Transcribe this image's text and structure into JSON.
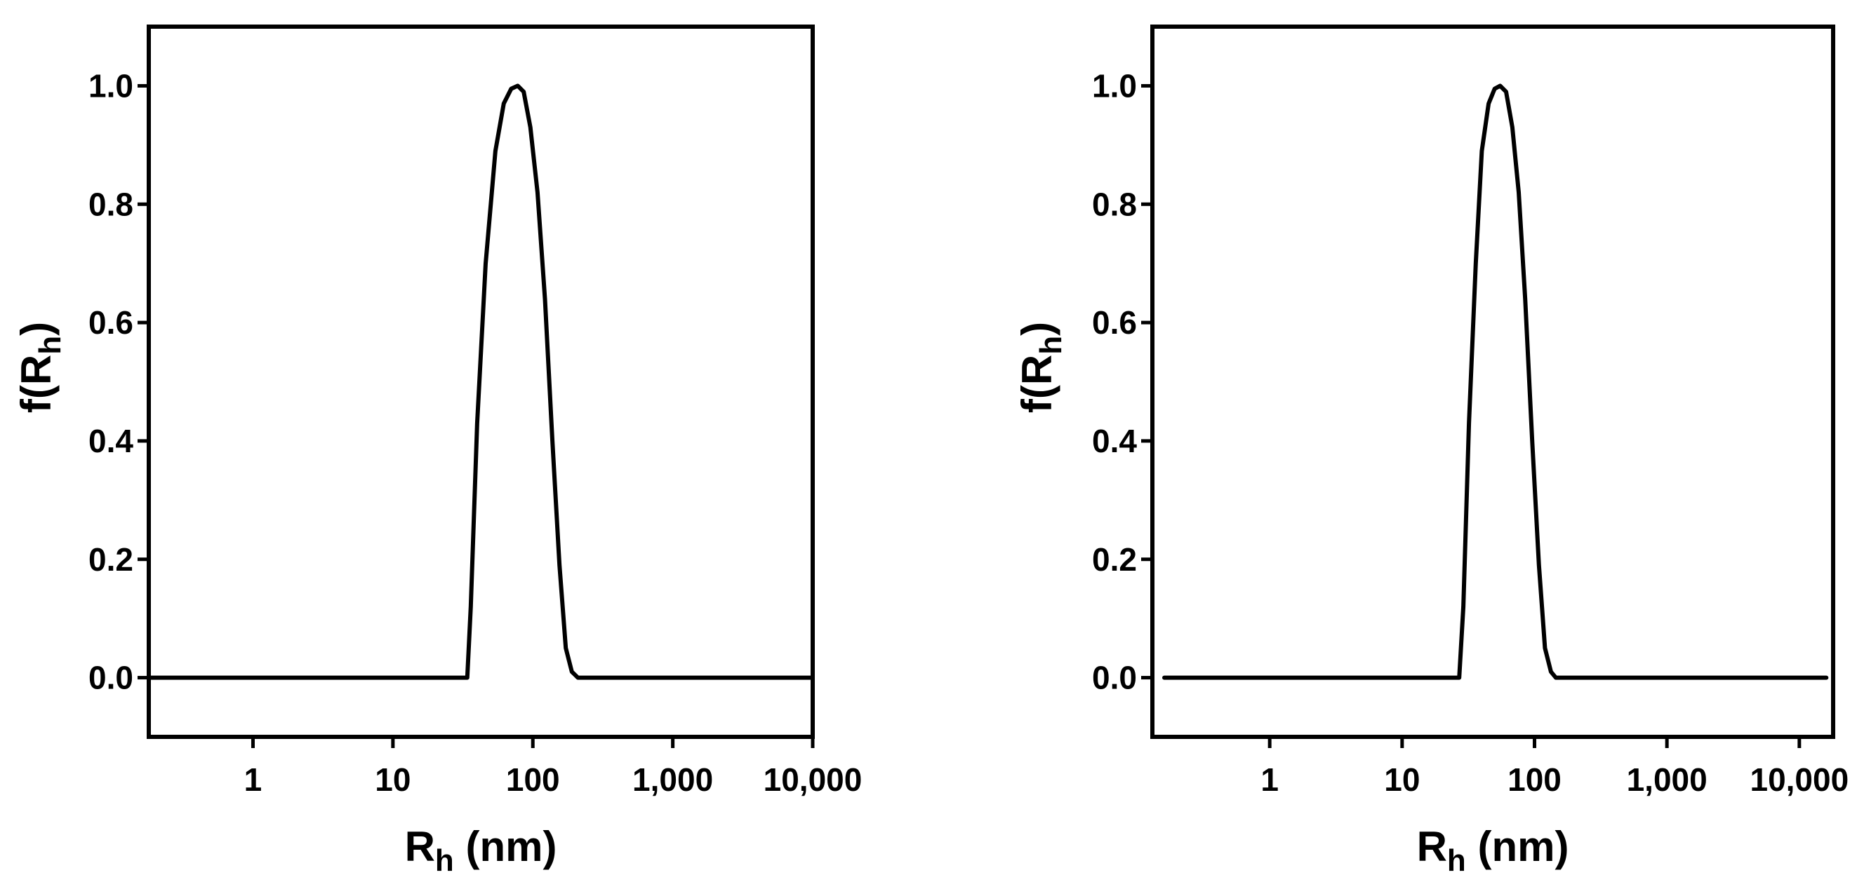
{
  "chart_data": [
    {
      "type": "line",
      "title": "",
      "xlabel": "R",
      "xlabel_subscript": "h",
      "xlabel_suffix": " (nm)",
      "ylabel": "f(R",
      "ylabel_subscript": "h",
      "ylabel_suffix": ")",
      "x_scale": "log",
      "xlim": [
        0.18,
        10000
      ],
      "ylim": [
        -0.1,
        1.1
      ],
      "x_ticks": [
        1,
        10,
        100,
        1000,
        10000
      ],
      "x_tick_labels": [
        "1",
        "10",
        "100",
        "1,000",
        "10,000"
      ],
      "y_ticks": [
        0.0,
        0.2,
        0.4,
        0.6,
        0.8,
        1.0
      ],
      "y_tick_labels": [
        "0.0",
        "0.2",
        "0.4",
        "0.6",
        "0.8",
        "1.0"
      ],
      "grid": false,
      "legend": "none",
      "series": [
        {
          "color": "#000000",
          "x": [
            0.18,
            34,
            36,
            40,
            46,
            54,
            62,
            70,
            78,
            86,
            96,
            108,
            122,
            138,
            155,
            172,
            190,
            210,
            10000
          ],
          "y": [
            0.0,
            0.0,
            0.12,
            0.43,
            0.7,
            0.89,
            0.97,
            0.995,
            1.0,
            0.99,
            0.93,
            0.82,
            0.64,
            0.4,
            0.19,
            0.05,
            0.01,
            0.0,
            0.0
          ]
        }
      ]
    },
    {
      "type": "line",
      "title": "",
      "xlabel": "R",
      "xlabel_subscript": "h",
      "xlabel_suffix": " (nm)",
      "ylabel": "f(R",
      "ylabel_subscript": "h",
      "ylabel_suffix": ")",
      "x_scale": "log",
      "xlim": [
        0.13,
        18000
      ],
      "ylim": [
        -0.1,
        1.1
      ],
      "x_ticks": [
        1,
        10,
        100,
        1000,
        10000
      ],
      "x_tick_labels": [
        "1",
        "10",
        "100",
        "1,000",
        "10,000"
      ],
      "y_ticks": [
        0.0,
        0.2,
        0.4,
        0.6,
        0.8,
        1.0
      ],
      "y_tick_labels": [
        "0.0",
        "0.2",
        "0.4",
        "0.6",
        "0.8",
        "1.0"
      ],
      "grid": false,
      "legend": "none",
      "series": [
        {
          "color": "#000000",
          "x": [
            0.16,
            27,
            29,
            32,
            36,
            40,
            45,
            50,
            55,
            61,
            68,
            76,
            85,
            96,
            108,
            120,
            133,
            145,
            16000
          ],
          "y": [
            0.0,
            0.0,
            0.12,
            0.43,
            0.7,
            0.89,
            0.97,
            0.995,
            1.0,
            0.99,
            0.93,
            0.82,
            0.64,
            0.4,
            0.19,
            0.05,
            0.01,
            0.0,
            0.0
          ]
        }
      ]
    }
  ]
}
